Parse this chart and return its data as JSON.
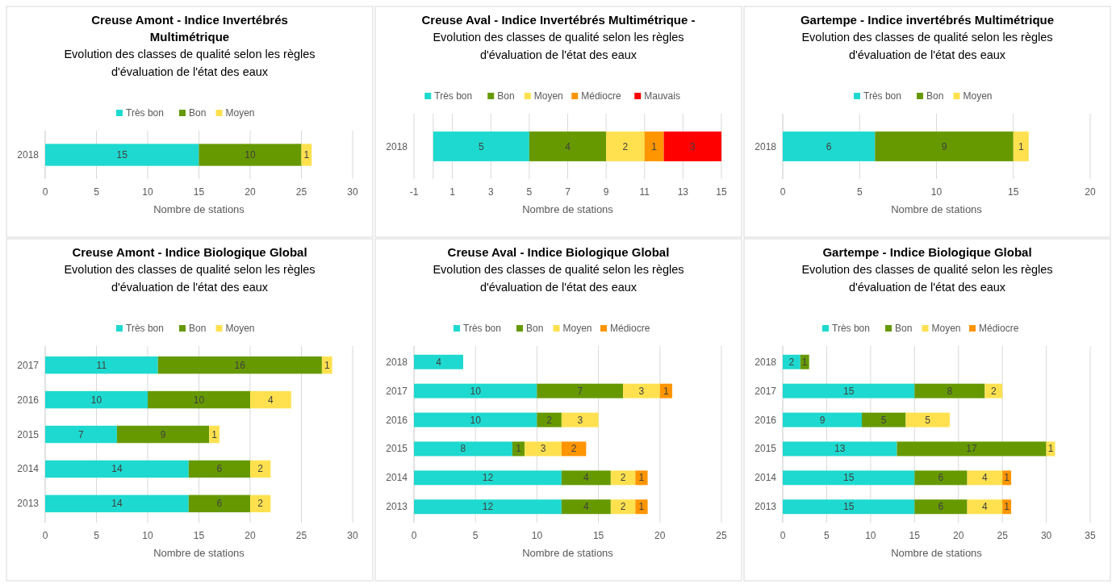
{
  "chart_data": [
    {
      "type": "bar",
      "orientation": "horizontal",
      "stacked": true,
      "title": "Creuse Amont - Indice Invertébrés Multimétrique",
      "subtitle": "Evolution des classes de qualité selon les règles d'évaluation de l'état des eaux",
      "xlabel": "Nombre de stations",
      "categories": [
        "2018"
      ],
      "series": [
        {
          "name": "Très bon",
          "color": "#1ed9cf",
          "values": [
            15
          ]
        },
        {
          "name": "Bon",
          "color": "#669900",
          "values": [
            10
          ]
        },
        {
          "name": "Moyen",
          "color": "#ffe14f",
          "values": [
            1
          ]
        }
      ],
      "xlim": [
        0,
        30
      ],
      "xticks": [
        0,
        5,
        10,
        15,
        20,
        25,
        30
      ],
      "grid": "x",
      "legend": "top",
      "data_labels": true
    },
    {
      "type": "bar",
      "orientation": "horizontal",
      "stacked": true,
      "title": "Creuse Aval - Indice Invertébrés Multimétrique -",
      "subtitle": "Evolution des classes de qualité selon les règles d'évaluation de l'état des eaux",
      "xlabel": "Nombre de stations",
      "categories": [
        "2018"
      ],
      "series": [
        {
          "name": "Très bon",
          "color": "#1ed9cf",
          "values": [
            5
          ]
        },
        {
          "name": "Bon",
          "color": "#669900",
          "values": [
            4
          ]
        },
        {
          "name": "Moyen",
          "color": "#ffe14f",
          "values": [
            2
          ]
        },
        {
          "name": "Médiocre",
          "color": "#ff9500",
          "values": [
            1
          ]
        },
        {
          "name": "Mauvais",
          "color": "#ff0000",
          "values": [
            3
          ]
        }
      ],
      "xlim": [
        -1,
        15
      ],
      "xticks": [
        -1,
        1,
        3,
        5,
        7,
        9,
        11,
        13,
        15
      ],
      "grid": "x",
      "legend": "top",
      "data_labels": true
    },
    {
      "type": "bar",
      "orientation": "horizontal",
      "stacked": true,
      "title": "Gartempe - Indice invertébrés Multimétrique",
      "subtitle": "Evolution des classes de qualité selon les règles d'évaluation de l'état des eaux",
      "xlabel": "Nombre de stations",
      "categories": [
        "2018"
      ],
      "series": [
        {
          "name": "Très bon",
          "color": "#1ed9cf",
          "values": [
            6
          ]
        },
        {
          "name": "Bon",
          "color": "#669900",
          "values": [
            9
          ]
        },
        {
          "name": "Moyen",
          "color": "#ffe14f",
          "values": [
            1
          ]
        }
      ],
      "xlim": [
        0,
        20
      ],
      "xticks": [
        0,
        5,
        10,
        15,
        20
      ],
      "grid": "x",
      "legend": "top",
      "data_labels": true
    },
    {
      "type": "bar",
      "orientation": "horizontal",
      "stacked": true,
      "title": "Creuse Amont - Indice Biologique Global",
      "subtitle": "Evolution des classes de qualité selon les règles d'évaluation de l'état des eaux",
      "xlabel": "Nombre de stations",
      "categories": [
        "2017",
        "2016",
        "2015",
        "2014",
        "2013"
      ],
      "series": [
        {
          "name": "Très bon",
          "color": "#1ed9cf",
          "values": [
            11,
            10,
            7,
            14,
            14
          ]
        },
        {
          "name": "Bon",
          "color": "#669900",
          "values": [
            16,
            10,
            9,
            6,
            6
          ]
        },
        {
          "name": "Moyen",
          "color": "#ffe14f",
          "values": [
            1,
            4,
            1,
            2,
            2
          ]
        }
      ],
      "xlim": [
        0,
        30
      ],
      "xticks": [
        0,
        5,
        10,
        15,
        20,
        25,
        30
      ],
      "grid": "x",
      "legend": "top",
      "data_labels": true
    },
    {
      "type": "bar",
      "orientation": "horizontal",
      "stacked": true,
      "title": "Creuse Aval - Indice Biologique Global",
      "subtitle": "Evolution des classes de qualité selon les règles d'évaluation de l'état des eaux",
      "xlabel": "Nombre de stations",
      "categories": [
        "2018",
        "2017",
        "2016",
        "2015",
        "2014",
        "2013"
      ],
      "series": [
        {
          "name": "Très bon",
          "color": "#1ed9cf",
          "values": [
            4,
            10,
            10,
            8,
            12,
            12
          ]
        },
        {
          "name": "Bon",
          "color": "#669900",
          "values": [
            null,
            7,
            2,
            1,
            4,
            4
          ]
        },
        {
          "name": "Moyen",
          "color": "#ffe14f",
          "values": [
            null,
            3,
            3,
            3,
            2,
            2
          ]
        },
        {
          "name": "Médiocre",
          "color": "#ff9500",
          "values": [
            null,
            1,
            null,
            2,
            1,
            1
          ]
        }
      ],
      "xlim": [
        0,
        25
      ],
      "xticks": [
        0,
        5,
        10,
        15,
        20,
        25
      ],
      "grid": "x",
      "legend": "top",
      "data_labels": true
    },
    {
      "type": "bar",
      "orientation": "horizontal",
      "stacked": true,
      "title": "Gartempe - Indice Biologique Global",
      "subtitle": "Evolution des classes de qualité selon les règles d'évaluation de l'état des eaux",
      "xlabel": "Nombre de stations",
      "categories": [
        "2018",
        "2017",
        "2016",
        "2015",
        "2014",
        "2013"
      ],
      "series": [
        {
          "name": "Très bon",
          "color": "#1ed9cf",
          "values": [
            2,
            15,
            9,
            13,
            15,
            15
          ]
        },
        {
          "name": "Bon",
          "color": "#669900",
          "values": [
            1,
            8,
            5,
            17,
            6,
            6
          ]
        },
        {
          "name": "Moyen",
          "color": "#ffe14f",
          "values": [
            null,
            2,
            5,
            1,
            4,
            4
          ]
        },
        {
          "name": "Médiocre",
          "color": "#ff9500",
          "values": [
            null,
            null,
            null,
            null,
            1,
            1
          ]
        }
      ],
      "xlim": [
        0,
        35
      ],
      "xticks": [
        0,
        5,
        10,
        15,
        20,
        25,
        30,
        35
      ],
      "grid": "x",
      "legend": "top",
      "data_labels": true
    }
  ]
}
